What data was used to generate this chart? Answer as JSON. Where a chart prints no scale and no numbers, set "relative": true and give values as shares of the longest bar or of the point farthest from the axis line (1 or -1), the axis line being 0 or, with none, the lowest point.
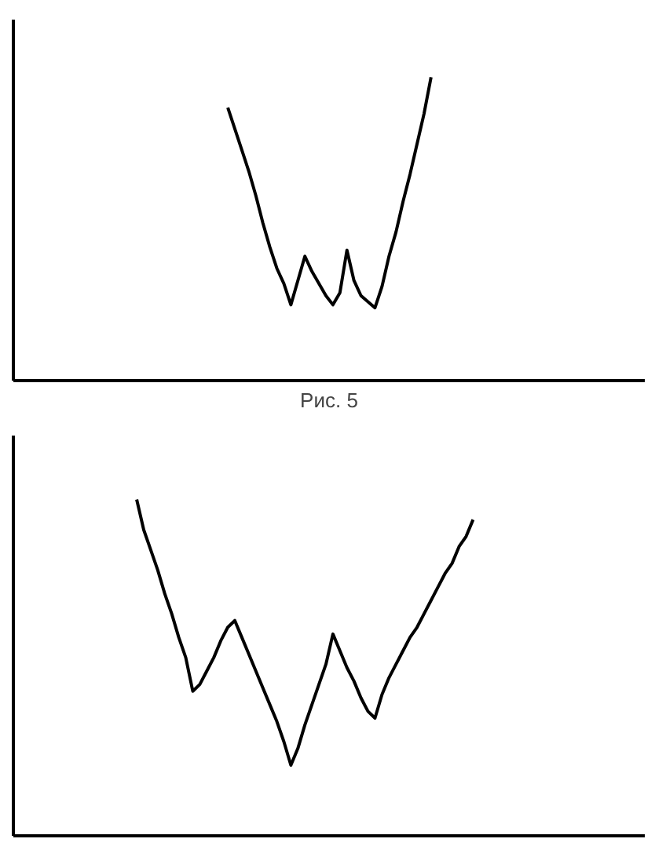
{
  "chart_data": [
    {
      "type": "line",
      "relative": true,
      "marker": "none",
      "line_style": "solid",
      "annotations": [
        "Рис. 5"
      ],
      "categories": [
        null,
        null,
        null,
        null,
        null,
        null,
        null,
        null,
        null,
        null,
        null,
        null,
        null,
        null,
        null,
        null,
        null,
        null,
        null,
        null,
        null,
        null,
        null,
        null,
        null,
        null,
        null,
        null,
        null,
        null,
        null,
        null,
        null,
        null,
        null,
        null,
        null,
        null,
        null,
        null,
        null,
        null,
        null,
        null,
        null,
        null,
        null,
        null,
        null,
        null,
        null,
        null,
        null,
        null,
        null,
        null,
        null,
        null,
        null,
        null,
        null,
        null,
        null,
        null,
        null,
        null,
        null,
        null,
        null,
        null,
        null,
        null,
        null,
        null,
        null,
        null,
        null,
        null,
        null,
        null,
        null,
        null,
        null,
        null,
        null,
        null,
        null,
        null,
        null
      ],
      "series": [
        {
          "color": "#000000",
          "values": [
            null,
            null,
            null,
            null,
            null,
            null,
            null,
            null,
            null,
            null,
            null,
            null,
            null,
            null,
            null,
            null,
            null,
            null,
            null,
            null,
            null,
            null,
            null,
            null,
            null,
            null,
            null,
            null,
            null,
            null,
            0.9,
            0.83,
            0.76,
            0.69,
            0.61,
            0.52,
            0.44,
            0.37,
            0.32,
            0.25,
            0.33,
            0.41,
            0.36,
            0.32,
            0.28,
            0.25,
            0.29,
            0.43,
            0.33,
            0.28,
            0.26,
            0.24,
            0.31,
            0.41,
            0.49,
            0.59,
            0.68,
            0.78,
            0.88,
            1.0,
            null,
            null,
            null,
            null,
            null,
            null,
            null,
            null,
            null,
            null,
            null,
            null,
            null,
            null,
            null,
            null,
            null,
            null,
            null,
            null,
            null,
            null,
            null,
            null,
            null,
            null,
            null,
            null,
            null
          ]
        }
      ]
    },
    {
      "type": "line",
      "relative": true,
      "marker": "none",
      "line_style": "solid",
      "categories": [
        null,
        null,
        null,
        null,
        null,
        null,
        null,
        null,
        null,
        null,
        null,
        null,
        null,
        null,
        null,
        null,
        null,
        null,
        null,
        null,
        null,
        null,
        null,
        null,
        null,
        null,
        null,
        null,
        null,
        null,
        null,
        null,
        null,
        null,
        null,
        null,
        null,
        null,
        null,
        null,
        null,
        null,
        null,
        null,
        null,
        null,
        null,
        null,
        null,
        null,
        null,
        null,
        null,
        null,
        null,
        null,
        null,
        null,
        null,
        null,
        null,
        null,
        null,
        null,
        null,
        null,
        null,
        null,
        null,
        null,
        null,
        null,
        null,
        null,
        null,
        null,
        null,
        null,
        null,
        null,
        null,
        null,
        null,
        null,
        null,
        null,
        null,
        null,
        null
      ],
      "series": [
        {
          "color": "#000000",
          "values": [
            null,
            null,
            null,
            null,
            null,
            null,
            null,
            null,
            null,
            null,
            null,
            null,
            null,
            null,
            null,
            null,
            null,
            1.0,
            0.91,
            0.85,
            0.79,
            0.72,
            0.66,
            0.59,
            0.53,
            0.43,
            0.45,
            0.49,
            0.53,
            0.58,
            0.62,
            0.64,
            0.59,
            0.54,
            0.49,
            0.44,
            0.39,
            0.34,
            0.28,
            0.21,
            0.26,
            0.33,
            0.39,
            0.45,
            0.51,
            0.6,
            0.55,
            0.5,
            0.46,
            0.41,
            0.37,
            0.35,
            0.42,
            0.47,
            0.51,
            0.55,
            0.59,
            0.62,
            0.66,
            0.7,
            0.74,
            0.78,
            0.81,
            0.86,
            0.89,
            0.94,
            null,
            null,
            null,
            null,
            null,
            null,
            null,
            null,
            null,
            null,
            null,
            null,
            null,
            null,
            null,
            null,
            null,
            null,
            null,
            null,
            null,
            null,
            null
          ]
        }
      ]
    }
  ]
}
